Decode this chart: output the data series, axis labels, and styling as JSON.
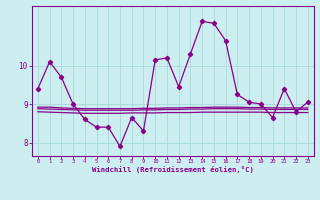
{
  "xlabel": "Windchill (Refroidissement éolien,°C)",
  "bg_color": "#cceef0",
  "grid_color": "#aadddd",
  "line_color": "#880088",
  "x_values": [
    0,
    1,
    2,
    3,
    4,
    5,
    6,
    7,
    8,
    9,
    10,
    11,
    12,
    13,
    14,
    15,
    16,
    17,
    18,
    19,
    20,
    21,
    22,
    23
  ],
  "y_main": [
    9.4,
    10.1,
    9.7,
    9.0,
    8.6,
    8.4,
    8.4,
    7.9,
    8.65,
    8.3,
    10.15,
    10.2,
    9.45,
    10.3,
    11.15,
    11.1,
    10.65,
    9.25,
    9.05,
    9.0,
    8.65,
    9.4,
    8.8,
    9.05
  ],
  "y_line1": [
    8.92,
    8.92,
    8.9,
    8.89,
    8.88,
    8.88,
    8.88,
    8.88,
    8.88,
    8.89,
    8.89,
    8.9,
    8.9,
    8.91,
    8.91,
    8.92,
    8.92,
    8.92,
    8.91,
    8.91,
    8.9,
    8.9,
    8.9,
    8.9
  ],
  "y_line2": [
    8.88,
    8.87,
    8.86,
    8.85,
    8.84,
    8.84,
    8.84,
    8.84,
    8.84,
    8.85,
    8.85,
    8.86,
    8.86,
    8.87,
    8.87,
    8.88,
    8.88,
    8.88,
    8.87,
    8.87,
    8.86,
    8.86,
    8.86,
    8.86
  ],
  "y_line3": [
    8.8,
    8.79,
    8.78,
    8.77,
    8.76,
    8.76,
    8.76,
    8.76,
    8.77,
    8.77,
    8.77,
    8.78,
    8.78,
    8.78,
    8.79,
    8.79,
    8.79,
    8.79,
    8.79,
    8.79,
    8.78,
    8.78,
    8.78,
    8.78
  ],
  "ylim_bottom": 7.65,
  "ylim_top": 11.55,
  "xlim_left": -0.5,
  "xlim_right": 23.5,
  "yticks": [
    8,
    9,
    10
  ],
  "xticks": [
    0,
    1,
    2,
    3,
    4,
    5,
    6,
    7,
    8,
    9,
    10,
    11,
    12,
    13,
    14,
    15,
    16,
    17,
    18,
    19,
    20,
    21,
    22,
    23
  ]
}
